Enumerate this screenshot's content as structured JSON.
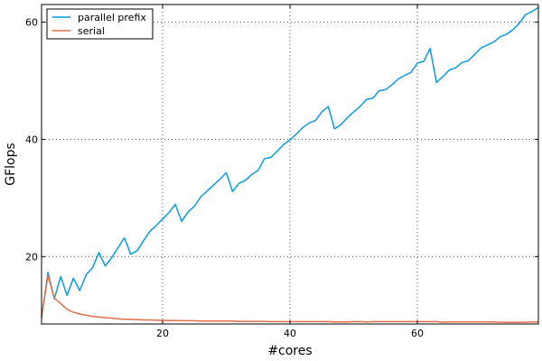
{
  "chart_data": {
    "type": "line",
    "xlabel": "#cores",
    "ylabel": "GFlops",
    "xlim": [
      1,
      79
    ],
    "ylim": [
      8.5,
      63
    ],
    "xticks": [
      20,
      40,
      60
    ],
    "yticks": [
      20,
      40,
      60
    ],
    "grid": true,
    "legend_position": "top-left",
    "series": [
      {
        "name": "parallel prefix",
        "color": "#0b9bdc",
        "x": [
          1,
          2,
          3,
          4,
          5,
          6,
          7,
          8,
          9,
          10,
          11,
          12,
          13,
          14,
          15,
          16,
          17,
          18,
          19,
          20,
          21,
          22,
          23,
          24,
          25,
          26,
          27,
          28,
          29,
          30,
          31,
          32,
          33,
          34,
          35,
          36,
          37,
          38,
          39,
          40,
          41,
          42,
          43,
          44,
          45,
          46,
          47,
          48,
          49,
          50,
          51,
          52,
          53,
          54,
          55,
          56,
          57,
          58,
          59,
          60,
          61,
          62,
          63,
          64,
          65,
          66,
          67,
          68,
          69,
          70,
          71,
          72,
          73,
          74,
          75,
          76,
          77,
          78,
          79
        ],
        "y": [
          9.5,
          17.3,
          12.8,
          16.6,
          13.4,
          16.3,
          14.2,
          16.9,
          18.1,
          20.7,
          18.4,
          19.8,
          21.5,
          23.2,
          20.4,
          21.0,
          22.7,
          24.3,
          25.3,
          26.4,
          27.5,
          28.9,
          26.0,
          27.6,
          28.6,
          30.2,
          31.2,
          32.2,
          33.2,
          34.3,
          31.1,
          32.5,
          33.0,
          34.0,
          34.7,
          36.7,
          36.9,
          38.0,
          39.1,
          39.9,
          40.9,
          42.0,
          42.8,
          43.2,
          44.7,
          45.6,
          41.8,
          42.5,
          43.7,
          44.7,
          45.6,
          46.8,
          47.0,
          48.3,
          48.5,
          49.3,
          50.3,
          50.9,
          51.4,
          53.0,
          53.3,
          55.5,
          49.7,
          50.7,
          51.8,
          52.2,
          53.1,
          53.4,
          54.5,
          55.6,
          56.1,
          56.6,
          57.5,
          57.9,
          58.7,
          59.8,
          61.3,
          61.8,
          62.5
        ]
      },
      {
        "name": "serial",
        "color": "#e06f48",
        "x": [
          1,
          2,
          3,
          4,
          5,
          6,
          7,
          8,
          9,
          10,
          11,
          12,
          13,
          14,
          15,
          16,
          17,
          18,
          19,
          20,
          21,
          22,
          23,
          24,
          25,
          26,
          27,
          28,
          29,
          30,
          31,
          32,
          33,
          34,
          35,
          36,
          37,
          38,
          39,
          40,
          41,
          42,
          43,
          44,
          45,
          46,
          47,
          48,
          49,
          50,
          51,
          52,
          53,
          54,
          55,
          56,
          57,
          58,
          59,
          60,
          61,
          62,
          63,
          64,
          65,
          66,
          67,
          68,
          69,
          70,
          71,
          72,
          73,
          74,
          75,
          76,
          77,
          78,
          79
        ],
        "y": [
          9.8,
          16.8,
          12.9,
          12.0,
          11.0,
          10.5,
          10.2,
          10.0,
          9.8,
          9.7,
          9.6,
          9.5,
          9.4,
          9.3,
          9.3,
          9.25,
          9.2,
          9.2,
          9.15,
          9.1,
          9.1,
          9.1,
          9.05,
          9.05,
          9.05,
          9.0,
          9.0,
          9.0,
          9.0,
          9.0,
          9.0,
          8.95,
          8.95,
          8.95,
          8.95,
          8.95,
          8.9,
          8.9,
          8.9,
          8.9,
          8.9,
          8.9,
          8.9,
          8.9,
          8.9,
          8.9,
          8.85,
          8.85,
          8.85,
          8.9,
          8.9,
          8.85,
          8.9,
          8.9,
          8.9,
          8.9,
          8.9,
          8.9,
          8.9,
          8.9,
          8.9,
          8.9,
          8.9,
          8.8,
          8.85,
          8.85,
          8.85,
          8.85,
          8.85,
          8.85,
          8.85,
          8.85,
          8.8,
          8.8,
          8.8,
          8.8,
          8.8,
          8.85,
          8.85
        ]
      }
    ]
  }
}
